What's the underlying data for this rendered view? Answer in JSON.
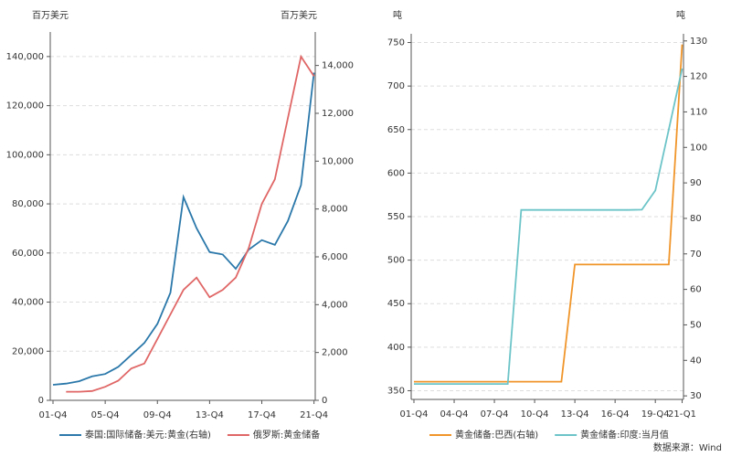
{
  "chart_data": [
    {
      "type": "line",
      "y_label": "百万美元",
      "y2_label": "百万美元",
      "categories": [
        "01-Q4",
        null,
        null,
        null,
        "05-Q4",
        null,
        null,
        null,
        "09-Q4",
        null,
        null,
        null,
        "13-Q4",
        null,
        null,
        null,
        "17-Q4",
        null,
        null,
        null,
        "21-Q4"
      ],
      "ylim": [
        0,
        150000
      ],
      "yticks": [
        0,
        {
          "value": 20000,
          "label": "20,000"
        },
        {
          "value": 40000,
          "label": "40,000"
        },
        {
          "value": 60000,
          "label": "60,000"
        },
        {
          "value": 80000,
          "label": "80,000"
        },
        {
          "value": 100000,
          "label": "100,000"
        },
        {
          "value": 120000,
          "label": "120,000"
        },
        {
          "value": 140000,
          "label": "140,000"
        }
      ],
      "y2lim": [
        0,
        15400
      ],
      "y2ticks": [
        0,
        {
          "value": 2000,
          "label": "2,000"
        },
        {
          "value": 4000,
          "label": "4,000"
        },
        {
          "value": 6000,
          "label": "6,000"
        },
        {
          "value": 8000,
          "label": "8,000"
        },
        {
          "value": 10000,
          "label": "10,000"
        },
        {
          "value": 12000,
          "label": "12,000"
        },
        {
          "value": 14000,
          "label": "14,000"
        }
      ],
      "grid": true,
      "series": [
        {
          "name": "泰国:国际储备:美元:黄金(右轴)",
          "color": "#2b78aa",
          "axis": "y2",
          "values": [
            650,
            700,
            800,
            1000,
            1100,
            1400,
            1900,
            2400,
            3200,
            4500,
            8500,
            7200,
            6200,
            6100,
            5500,
            6300,
            6700,
            6500,
            7500,
            9000,
            13700
          ]
        },
        {
          "name": "俄罗斯:黄金储备",
          "color": "#e06666",
          "values": [
            null,
            3500,
            3500,
            3800,
            5500,
            8000,
            13000,
            15000,
            25000,
            35000,
            45000,
            50000,
            42000,
            45000,
            50000,
            62000,
            80000,
            90000,
            115000,
            140000,
            132000
          ]
        }
      ]
    },
    {
      "type": "line",
      "y_label": "吨",
      "y2_label": "吨",
      "categories": [
        "01-Q4",
        null,
        null,
        "04-Q4",
        null,
        null,
        "07-Q4",
        null,
        null,
        "10-Q4",
        null,
        null,
        "13-Q4",
        null,
        null,
        "16-Q4",
        null,
        null,
        "19-Q4",
        null,
        "21-Q1"
      ],
      "ylim": [
        340,
        760
      ],
      "yticks": [
        350,
        400,
        450,
        500,
        550,
        600,
        650,
        700,
        750
      ],
      "y2lim": [
        29,
        132
      ],
      "y2ticks": [
        30,
        40,
        50,
        60,
        70,
        80,
        90,
        100,
        110,
        120,
        130
      ],
      "grid": true,
      "series": [
        {
          "name": "黄金储备:巴西(右轴)",
          "color": "#f0952a",
          "axis": "y2",
          "values": [
            34,
            34,
            34,
            34,
            34,
            34,
            34,
            34,
            34,
            34,
            34,
            34,
            67,
            67,
            67,
            67,
            67,
            67,
            67,
            67,
            129
          ]
        },
        {
          "name": "黄金储备:印度:当月值",
          "color": "#6cc4c8",
          "values": [
            357.7,
            357.7,
            357.7,
            357.7,
            357.7,
            357.7,
            357.7,
            357.7,
            557.7,
            557.7,
            557.7,
            557.7,
            557.7,
            557.7,
            557.7,
            557.7,
            557.7,
            558,
            580,
            650,
            720
          ]
        }
      ],
      "note": "数据来源：Wind"
    }
  ]
}
